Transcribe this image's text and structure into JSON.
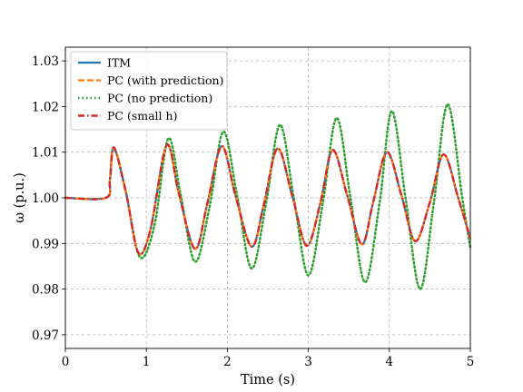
{
  "chart_data": {
    "type": "line",
    "xlabel": "Time (s)",
    "ylabel": "ω (p.u.)",
    "xlim": [
      0,
      5
    ],
    "ylim": [
      0.967,
      1.033
    ],
    "xticks": [
      0,
      1,
      2,
      3,
      4,
      5
    ],
    "xtick_labels": [
      "0",
      "1",
      "2",
      "3",
      "4",
      "5"
    ],
    "yticks": [
      0.97,
      0.98,
      0.99,
      1.0,
      1.01,
      1.02,
      1.03
    ],
    "ytick_labels": [
      "0.97",
      "0.98",
      "0.99",
      "1.00",
      "1.01",
      "1.02",
      "1.03"
    ],
    "grid": true,
    "legend_position": "upper-left",
    "series": [
      {
        "name": "ITM",
        "color": "#1f77b4",
        "style": "solid",
        "x": [
          0,
          0.5,
          0.55,
          0.6,
          0.75,
          0.9,
          1.05,
          1.25,
          1.4,
          1.6,
          1.75,
          1.93,
          2.1,
          2.3,
          2.45,
          2.62,
          2.8,
          2.98,
          3.15,
          3.3,
          3.48,
          3.66,
          3.8,
          3.97,
          4.15,
          4.32,
          4.5,
          4.67,
          4.85,
          5.0
        ],
        "y": [
          1.0,
          1.0,
          1.004,
          1.011,
          1.001,
          0.988,
          0.993,
          1.0115,
          1.001,
          0.9888,
          0.9985,
          1.0113,
          1.0005,
          0.9893,
          0.9985,
          1.0108,
          1.0005,
          0.9895,
          0.999,
          1.0105,
          1.0005,
          0.9898,
          0.999,
          1.01,
          1.0005,
          0.9905,
          0.999,
          1.0095,
          1.0,
          0.991
        ]
      },
      {
        "name": "PC (with prediction)",
        "color": "#ff7f0e",
        "style": "dashed",
        "x": [
          0,
          0.5,
          0.55,
          0.6,
          0.75,
          0.9,
          1.05,
          1.25,
          1.4,
          1.6,
          1.75,
          1.93,
          2.1,
          2.3,
          2.45,
          2.62,
          2.8,
          2.98,
          3.15,
          3.3,
          3.48,
          3.66,
          3.8,
          3.97,
          4.15,
          4.32,
          4.5,
          4.67,
          4.85,
          5.0
        ],
        "y": [
          1.0,
          1.0,
          1.004,
          1.011,
          1.001,
          0.988,
          0.993,
          1.0115,
          1.001,
          0.9888,
          0.9985,
          1.0113,
          1.0005,
          0.9893,
          0.9985,
          1.0108,
          1.0005,
          0.9895,
          0.999,
          1.0105,
          1.0005,
          0.9898,
          0.999,
          1.01,
          1.0005,
          0.9905,
          0.999,
          1.0095,
          1.0,
          0.991
        ]
      },
      {
        "name": "PC (no prediction)",
        "color": "#2ca02c",
        "style": "dotted",
        "x": [
          0,
          0.5,
          0.55,
          0.6,
          0.75,
          0.92,
          1.1,
          1.27,
          1.42,
          1.6,
          1.78,
          1.95,
          2.12,
          2.3,
          2.48,
          2.65,
          2.82,
          3.0,
          3.18,
          3.35,
          3.52,
          3.7,
          3.88,
          4.03,
          4.2,
          4.38,
          4.55,
          4.72,
          4.9,
          5.0
        ],
        "y": [
          1.0,
          1.0,
          1.004,
          1.011,
          1.001,
          0.987,
          0.994,
          1.013,
          1.001,
          0.986,
          0.998,
          1.0145,
          1.0005,
          0.9845,
          0.999,
          1.016,
          1.0,
          0.983,
          0.999,
          1.0175,
          1.0,
          0.9815,
          0.999,
          1.019,
          1.0,
          0.98,
          0.999,
          1.0205,
          1.0,
          0.989
        ]
      },
      {
        "name": "PC (small h)",
        "color": "#d62728",
        "style": "dashdot",
        "x": [
          0,
          0.5,
          0.55,
          0.6,
          0.75,
          0.9,
          1.05,
          1.25,
          1.4,
          1.6,
          1.75,
          1.93,
          2.1,
          2.3,
          2.45,
          2.62,
          2.8,
          2.98,
          3.15,
          3.3,
          3.48,
          3.66,
          3.8,
          3.97,
          4.15,
          4.32,
          4.5,
          4.67,
          4.85,
          5.0
        ],
        "y": [
          1.0,
          1.0,
          1.004,
          1.011,
          1.001,
          0.988,
          0.993,
          1.0115,
          1.001,
          0.9888,
          0.9985,
          1.0113,
          1.0005,
          0.9893,
          0.9985,
          1.0108,
          1.0005,
          0.9895,
          0.999,
          1.0105,
          1.0005,
          0.9898,
          0.999,
          1.01,
          1.0005,
          0.9905,
          0.999,
          1.0095,
          1.0,
          0.991
        ]
      }
    ]
  }
}
